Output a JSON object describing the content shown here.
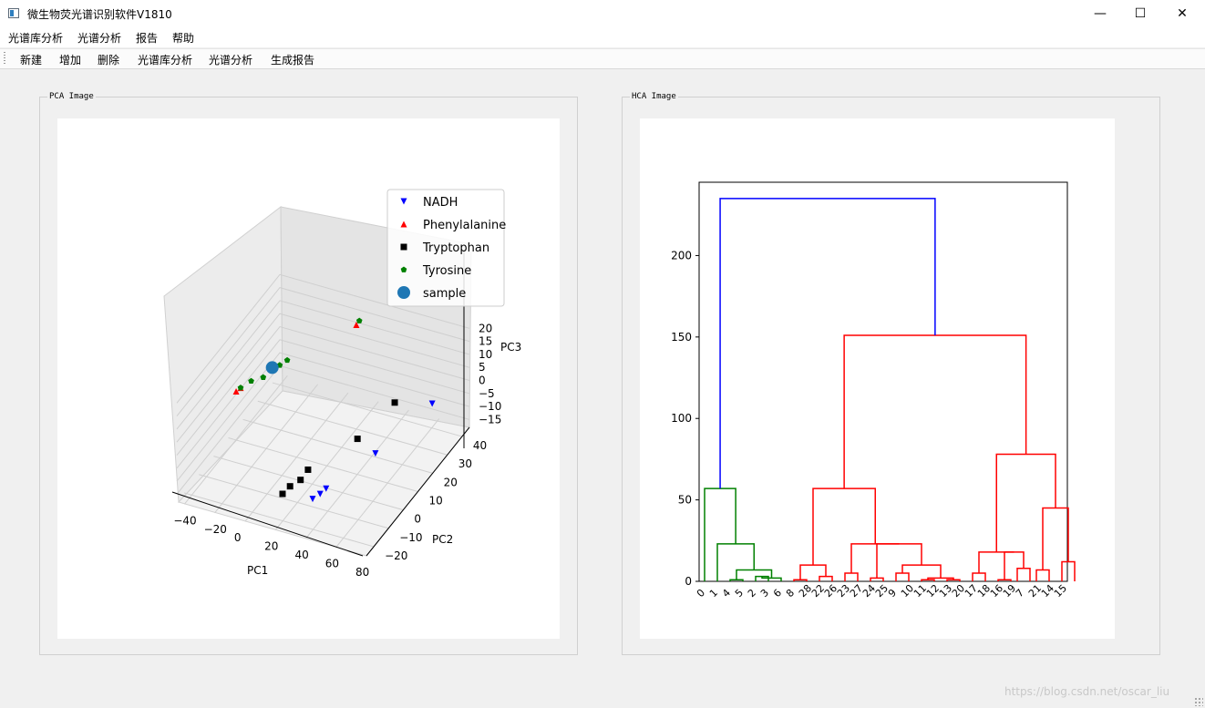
{
  "window": {
    "title": "微生物荧光谱识别软件V1810",
    "controls": {
      "minimize": "—",
      "maximize": "☐",
      "close": "✕"
    }
  },
  "menubar": {
    "items": [
      "光谱库分析",
      "光谱分析",
      "报告",
      "帮助"
    ]
  },
  "toolbar": {
    "items": [
      "新建",
      "增加",
      "删除",
      "光谱库分析",
      "光谱分析",
      "生成报告"
    ]
  },
  "pca": {
    "group_title": "PCA Image",
    "chart_data": {
      "type": "scatter",
      "xlabel": "PC1",
      "ylabel": "PC2",
      "zlabel": "PC3",
      "x_ticks": [
        "−40",
        "−20",
        "0",
        "20",
        "40",
        "60",
        "80"
      ],
      "y_ticks": [
        "−20",
        "−10",
        "0",
        "10",
        "20",
        "30",
        "40"
      ],
      "z_ticks": [
        "20",
        "15",
        "10",
        "5",
        "0",
        "−5",
        "−10",
        "−15"
      ],
      "legend_position": "top-right",
      "series": [
        {
          "name": "NADH",
          "marker": "tri-down",
          "color": "#0000ff",
          "points": [
            [
              30,
              -10,
              -15
            ],
            [
              33,
              -8,
              -14
            ],
            [
              35,
              -6,
              -13
            ],
            [
              52,
              10,
              -8
            ],
            [
              70,
              30,
              0
            ]
          ]
        },
        {
          "name": "Phenylalanine",
          "marker": "tri-up",
          "color": "#ff0000",
          "points": [
            [
              -35,
              5,
              5
            ],
            [
              -33,
              6,
              6
            ],
            [
              20,
              30,
              22
            ]
          ]
        },
        {
          "name": "Tryptophan",
          "marker": "square",
          "color": "#000000",
          "points": [
            [
              15,
              -15,
              -12
            ],
            [
              18,
              -13,
              -10
            ],
            [
              22,
              -10,
              -9
            ],
            [
              25,
              -8,
              -6
            ],
            [
              45,
              5,
              0
            ],
            [
              55,
              20,
              5
            ]
          ]
        },
        {
          "name": "Tyrosine",
          "marker": "pentagon",
          "color": "#008000",
          "points": [
            [
              -33,
              6,
              6
            ],
            [
              -28,
              8,
              8
            ],
            [
              -22,
              10,
              9
            ],
            [
              -15,
              14,
              12
            ],
            [
              -12,
              16,
              13
            ],
            [
              21,
              31,
              23
            ]
          ]
        },
        {
          "name": "sample",
          "marker": "circle",
          "color": "#1f77b4",
          "points": [
            [
              -18,
              12,
              12
            ]
          ]
        }
      ]
    }
  },
  "hca": {
    "group_title": "HCA Image",
    "chart_data": {
      "type": "dendrogram",
      "ylabel": "",
      "ylim": [
        0,
        245
      ],
      "y_ticks": [
        "0",
        "50",
        "100",
        "150",
        "200"
      ],
      "leaf_order": [
        "0",
        "1",
        "4",
        "5",
        "2",
        "3",
        "6",
        "8",
        "28",
        "22",
        "26",
        "23",
        "27",
        "24",
        "25",
        "9",
        "10",
        "11",
        "12",
        "13",
        "20",
        "17",
        "18",
        "16",
        "19",
        "7",
        "21",
        "14",
        "15"
      ],
      "merges": [
        {
          "left": 0.5,
          "right": 1.5,
          "height": 0,
          "color": "#008000",
          "kind": "merge"
        }
      ],
      "clusters": [
        {
          "name": "green",
          "color": "#008000"
        },
        {
          "name": "red",
          "color": "#ff0000"
        },
        {
          "name": "root",
          "color": "#0000ff"
        }
      ],
      "links": [
        {
          "x1": 1.0,
          "x2": 2.0,
          "y1a": 0,
          "y1b": 0,
          "y": 1,
          "color": "#008000"
        },
        {
          "x1": 3.0,
          "x2": 4.0,
          "y1a": 0,
          "y1b": 0,
          "y": 3,
          "color": "#008000"
        },
        {
          "x1": 3.5,
          "x2": 5.0,
          "y1a": 3,
          "y1b": 0,
          "y": 2,
          "color": "#008000"
        },
        {
          "x1": 1.5,
          "x2": 4.25,
          "y1a": 1,
          "y1b": 2,
          "y": 7,
          "color": "#008000"
        },
        {
          "x1": 0.0,
          "x2": 2.875,
          "y1a": 0,
          "y1b": 7,
          "y": 23,
          "color": "#008000"
        },
        {
          "x1": -1.0,
          "x2": 1.4375,
          "y1a": 0,
          "y1b": 23,
          "y": 57,
          "color": "#008000"
        },
        {
          "x1": 6.0,
          "x2": 7.0,
          "y1a": 0,
          "y1b": 0,
          "y": 1,
          "color": "#ff0000"
        },
        {
          "x1": 8.0,
          "x2": 9.0,
          "y1a": 0,
          "y1b": 0,
          "y": 3,
          "color": "#ff0000"
        },
        {
          "x1": 6.5,
          "x2": 8.5,
          "y1a": 1,
          "y1b": 3,
          "y": 10,
          "color": "#ff0000"
        },
        {
          "x1": 10.0,
          "x2": 11.0,
          "y1a": 0,
          "y1b": 0,
          "y": 5,
          "color": "#ff0000"
        },
        {
          "x1": 12.0,
          "x2": 13.0,
          "y1a": 0,
          "y1b": 0,
          "y": 2,
          "color": "#ff0000"
        },
        {
          "x1": 14.0,
          "x2": 15.0,
          "y1a": 0,
          "y1b": 0,
          "y": 5,
          "color": "#ff0000"
        },
        {
          "x1": 16.0,
          "x2": 17.0,
          "y1a": 0,
          "y1b": 0,
          "y": 1,
          "color": "#ff0000"
        },
        {
          "x1": 18.0,
          "x2": 19.0,
          "y1a": 0,
          "y1b": 0,
          "y": 1,
          "color": "#ff0000"
        },
        {
          "x1": 16.5,
          "x2": 18.5,
          "y1a": 1,
          "y1b": 1,
          "y": 2,
          "color": "#ff0000"
        },
        {
          "x1": 14.5,
          "x2": 17.5,
          "y1a": 5,
          "y1b": 2,
          "y": 10,
          "color": "#ff0000"
        },
        {
          "x1": 12.5,
          "x2": 16.0,
          "y1a": 2,
          "y1b": 10,
          "y": 23,
          "color": "#ff0000"
        },
        {
          "x1": 10.5,
          "x2": 14.25,
          "y1a": 5,
          "y1b": 23,
          "y": 23,
          "color": "#ff0000"
        },
        {
          "x1": 7.5,
          "x2": 12.375,
          "y1a": 10,
          "y1b": 23,
          "y": 57,
          "color": "#ff0000"
        },
        {
          "x1": 20.0,
          "x2": 21.0,
          "y1a": 0,
          "y1b": 0,
          "y": 5,
          "color": "#ff0000"
        },
        {
          "x1": 22.0,
          "x2": 23.0,
          "y1a": 0,
          "y1b": 0,
          "y": 1,
          "color": "#ff0000"
        },
        {
          "x1": 23.5,
          "x2": 24.5,
          "y1a": 0,
          "y1b": 0,
          "y": 8,
          "color": "#ff0000"
        },
        {
          "x1": 22.5,
          "x2": 24.0,
          "y1a": 1,
          "y1b": 8,
          "y": 18,
          "color": "#ff0000"
        },
        {
          "x1": 20.5,
          "x2": 23.25,
          "y1a": 5,
          "y1b": 18,
          "y": 18,
          "color": "#ff0000"
        },
        {
          "x1": 25.0,
          "x2": 26.0,
          "y1a": 0,
          "y1b": 0,
          "y": 7,
          "color": "#ff0000"
        },
        {
          "x1": 27.0,
          "x2": 28.0,
          "y1a": 0,
          "y1b": 0,
          "y": 12,
          "color": "#ff0000"
        },
        {
          "x1": 25.5,
          "x2": 27.5,
          "y1a": 7,
          "y1b": 12,
          "y": 45,
          "color": "#ff0000"
        },
        {
          "x1": 21.875,
          "x2": 26.5,
          "y1a": 18,
          "y1b": 45,
          "y": 78,
          "color": "#ff0000"
        },
        {
          "x1": 9.9375,
          "x2": 24.1875,
          "y1a": 57,
          "y1b": 78,
          "y": 151,
          "color": "#ff0000"
        },
        {
          "x1": 0.21875,
          "x2": 17.0625,
          "y1a": 57,
          "y1b": 151,
          "y": 235,
          "color": "#0000ff"
        }
      ]
    }
  },
  "watermark": "https://blog.csdn.net/oscar_liu"
}
